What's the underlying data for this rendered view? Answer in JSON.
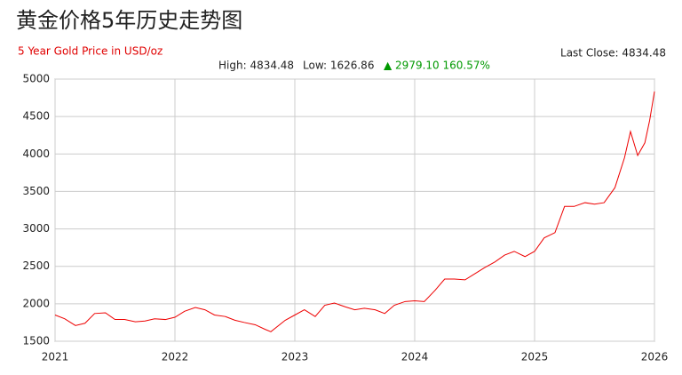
{
  "chart_data": {
    "type": "line",
    "title": "黄金价格5年历史走势图",
    "subtitle": "5 Year Gold Price in USD/oz",
    "last_close": "Last Close: 4834.48",
    "stats": {
      "high": "High: 4834.48",
      "low": "Low: 1626.86",
      "change": "▲ 2979.10 160.57%"
    },
    "x": [
      2021.0,
      2021.08,
      2021.17,
      2021.25,
      2021.33,
      2021.42,
      2021.5,
      2021.58,
      2021.67,
      2021.75,
      2021.83,
      2021.92,
      2022.0,
      2022.08,
      2022.17,
      2022.25,
      2022.33,
      2022.42,
      2022.5,
      2022.58,
      2022.67,
      2022.75,
      2022.8,
      2022.92,
      2023.0,
      2023.08,
      2023.17,
      2023.25,
      2023.33,
      2023.42,
      2023.5,
      2023.58,
      2023.67,
      2023.75,
      2023.83,
      2023.92,
      2024.0,
      2024.08,
      2024.17,
      2024.25,
      2024.33,
      2024.42,
      2024.5,
      2024.58,
      2024.67,
      2024.75,
      2024.83,
      2024.92,
      2025.0,
      2025.08,
      2025.17,
      2025.25,
      2025.33,
      2025.42,
      2025.5,
      2025.58,
      2025.67,
      2025.75,
      2025.8,
      2025.86,
      2025.92,
      2025.96,
      2026.0
    ],
    "series": [
      {
        "color": "#ee0000",
        "values": [
          1850,
          1800,
          1710,
          1740,
          1870,
          1880,
          1790,
          1790,
          1760,
          1770,
          1800,
          1790,
          1820,
          1900,
          1950,
          1920,
          1850,
          1830,
          1780,
          1750,
          1720,
          1660,
          1626.86,
          1780,
          1850,
          1920,
          1830,
          1980,
          2010,
          1960,
          1920,
          1940,
          1920,
          1870,
          1980,
          2030,
          2040,
          2030,
          2180,
          2330,
          2330,
          2320,
          2400,
          2480,
          2560,
          2650,
          2700,
          2630,
          2700,
          2880,
          2950,
          3300,
          3300,
          3350,
          3330,
          3350,
          3550,
          3950,
          4300,
          3980,
          4150,
          4450,
          4834.48
        ]
      }
    ],
    "xlim": [
      2021,
      2026
    ],
    "xticks": [
      2021,
      2022,
      2023,
      2024,
      2025,
      2026
    ],
    "ylim": [
      1500,
      5000
    ],
    "yticks": [
      1500,
      2000,
      2500,
      3000,
      3500,
      4000,
      4500,
      5000
    ],
    "grid": true
  }
}
